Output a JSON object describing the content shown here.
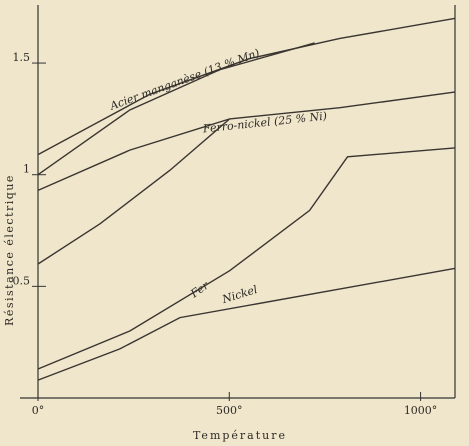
{
  "chart_data": {
    "type": "line",
    "xlabel": "Température",
    "ylabel": "Résistance électrique",
    "xlim": [
      0,
      1090
    ],
    "ylim": [
      0,
      1.76
    ],
    "xticks": [
      {
        "value": 0,
        "label": "0°"
      },
      {
        "value": 500,
        "label": "500°"
      },
      {
        "value": 1000,
        "label": "1000°"
      }
    ],
    "yticks": [
      {
        "value": 0.5,
        "label": "0.5"
      },
      1,
      1.5
    ],
    "series": [
      {
        "name": "Acier manganèse (13 % Mn)",
        "color": "#3a3530",
        "x": [
          0,
          292,
          553,
          789,
          1089
        ],
        "values": [
          1.09,
          1.36,
          1.52,
          1.61,
          1.7
        ]
      },
      {
        "color": "#3a3530",
        "x": [
          0,
          240,
          475,
          723
        ],
        "values": [
          1.0,
          1.29,
          1.47,
          1.59
        ]
      },
      {
        "name": "Ferro-nickel (25 % Ni)",
        "color": "#3a3530",
        "x": [
          0,
          240,
          501,
          789,
          1089
        ],
        "values": [
          0.93,
          1.11,
          1.25,
          1.3,
          1.37
        ]
      },
      {
        "color": "#3a3530",
        "x": [
          0,
          162,
          345,
          501
        ],
        "values": [
          0.6,
          0.78,
          1.02,
          1.25
        ]
      },
      {
        "name": "Fer",
        "color": "#3a3530",
        "x": [
          0,
          240,
          501,
          710,
          809,
          1089
        ],
        "values": [
          0.13,
          0.3,
          0.57,
          0.84,
          1.08,
          1.12
        ]
      },
      {
        "name": "Nickel",
        "color": "#3a3530",
        "x": [
          0,
          214,
          371,
          1089
        ],
        "values": [
          0.08,
          0.22,
          0.36,
          0.58
        ]
      }
    ]
  }
}
